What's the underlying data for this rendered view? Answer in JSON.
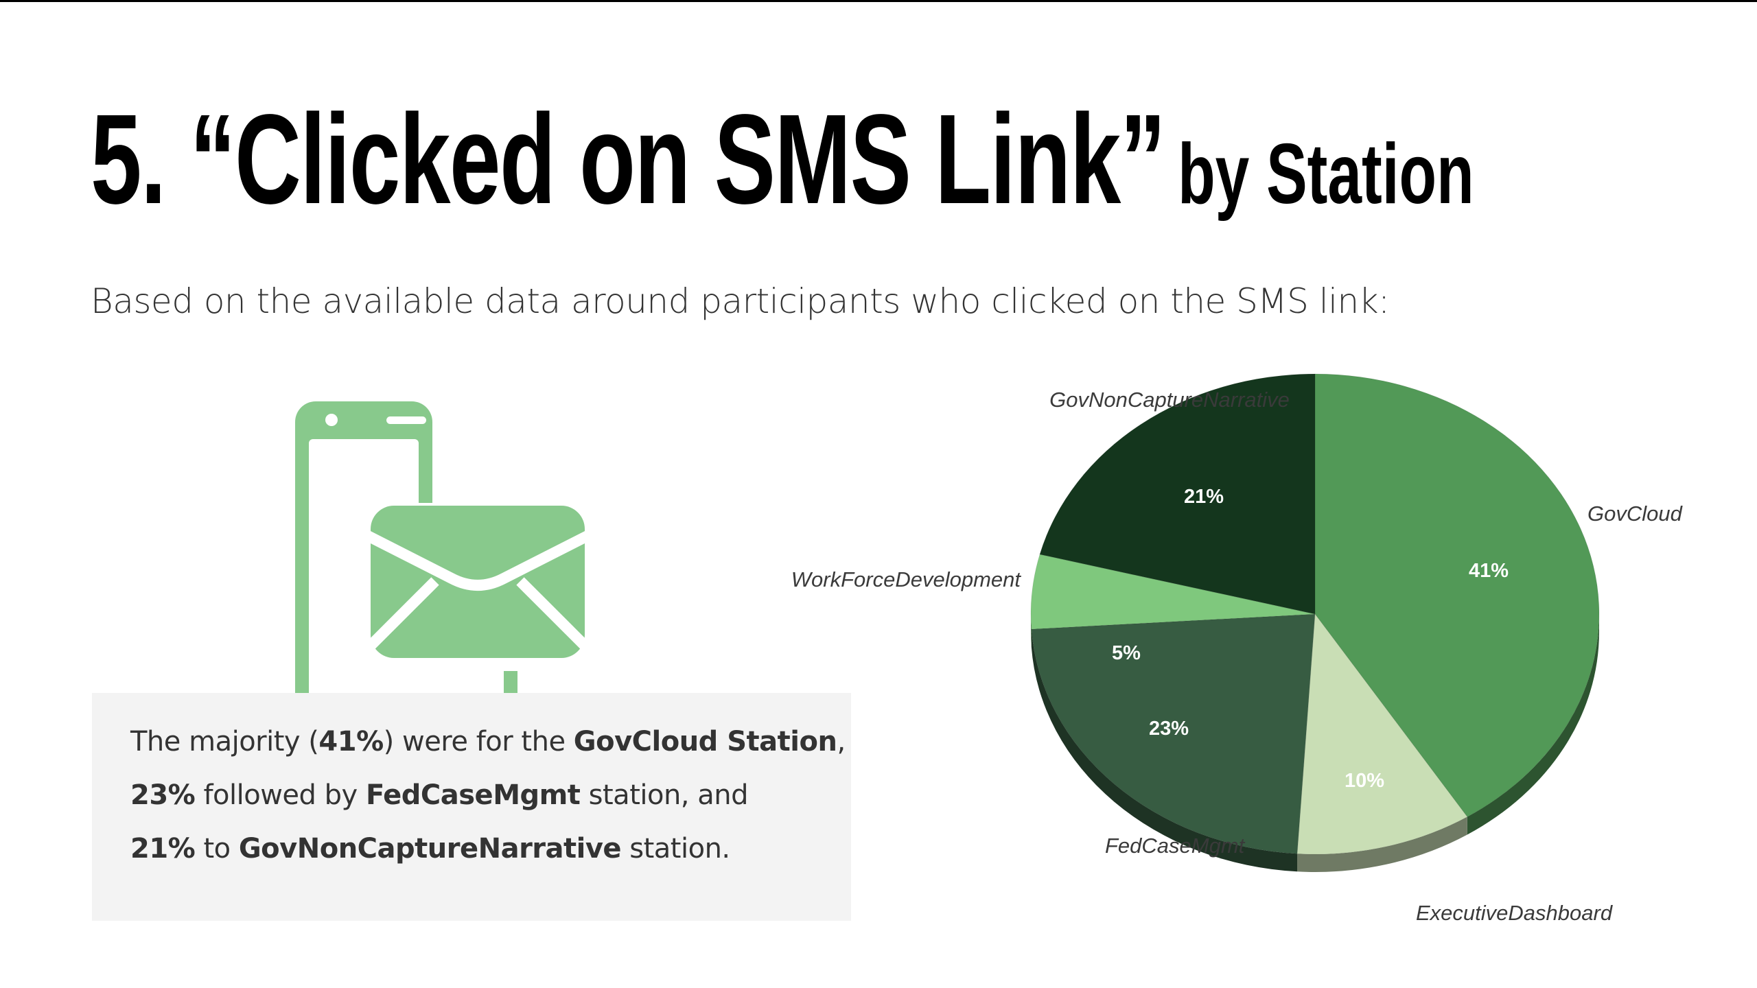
{
  "slide": {
    "title_main": "5. “Clicked on SMS Link”",
    "title_suffix": "by Station",
    "subtitle": "Based on the available data around participants who clicked on the SMS link:"
  },
  "summary": {
    "line1": {
      "pre": "The majority (",
      "pct": "41%",
      "mid": ") were for the ",
      "station": "GovCloud Station",
      "post": ","
    },
    "line2": {
      "pct": "23%",
      "mid": " followed by ",
      "station": "FedCaseMgmt",
      "post": " station, and"
    },
    "line3": {
      "pct": "21%",
      "mid": " to ",
      "station": "GovNonCaptureNarrative",
      "post": " station."
    }
  },
  "colors": {
    "icon_green": "#88c98c",
    "GovCloud": "#529957",
    "ExecutiveDashboard": "#c9deb5",
    "FedCaseMgmt": "#375c42",
    "WorkForceDevelopment": "#7fc87d",
    "GovNonCaptureNarrative": "#14361d"
  },
  "icons": {
    "phone": "smartphone-icon",
    "envelope": "envelope-icon"
  },
  "chart_data": {
    "type": "pie",
    "style": "3d",
    "slices": [
      {
        "label": "GovCloud",
        "value": 41,
        "data_label": "41%"
      },
      {
        "label": "ExecutiveDashboard",
        "value": 10,
        "data_label": "10%"
      },
      {
        "label": "FedCaseMgmt",
        "value": 23,
        "data_label": "23%"
      },
      {
        "label": "WorkForceDevelopment",
        "value": 5,
        "data_label": "5%"
      },
      {
        "label": "GovNonCaptureNarrative",
        "value": 21,
        "data_label": "21%"
      }
    ],
    "legend": "none",
    "label_placement": "outside"
  }
}
